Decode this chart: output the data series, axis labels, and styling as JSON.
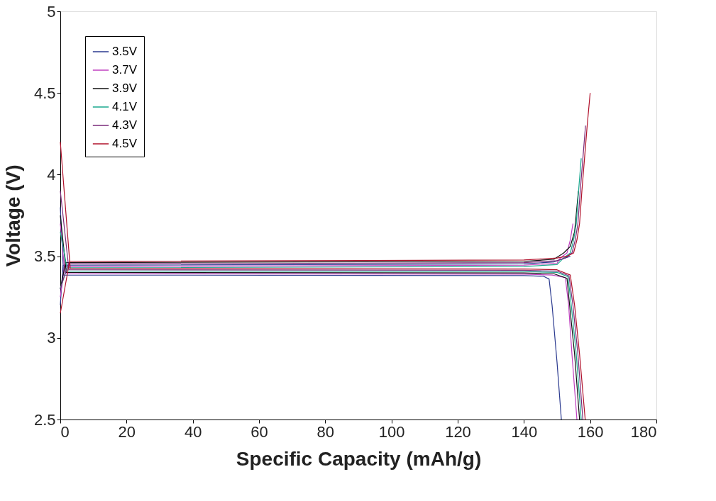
{
  "chart_data": {
    "type": "line",
    "xlabel": "Specific Capacity (mAh/g)",
    "ylabel": "Voltage (V)",
    "xlim": [
      0,
      180
    ],
    "xticks": [
      0,
      20,
      40,
      60,
      80,
      100,
      120,
      140,
      160,
      180
    ],
    "ylim": [
      2.5,
      5
    ],
    "yticks": [
      2.5,
      3,
      3.5,
      4,
      4.5,
      5
    ],
    "grid": false,
    "legend": "top left",
    "marker": "none",
    "line_style": "solid",
    "series": [
      {
        "name": "3.5V",
        "color": "#2b3a8f",
        "x": [
          0,
          0.8,
          140,
          149,
          154,
          null,
          0,
          1,
          140,
          146,
          147.6,
          148.5,
          150,
          151.3
        ],
        "values": [
          3.2,
          3.445,
          3.453,
          3.465,
          3.5,
          null,
          3.8,
          3.385,
          3.382,
          3.377,
          3.36,
          3.2,
          2.85,
          2.5
        ]
      },
      {
        "name": "3.7V",
        "color": "#c040c0",
        "x": [
          0,
          1.2,
          140,
          150,
          151,
          153,
          154,
          154.8,
          null,
          0,
          1.4,
          140,
          148.5,
          152.5,
          153.5,
          154.5,
          156
        ],
        "values": [
          3.25,
          3.437,
          3.445,
          3.457,
          3.49,
          3.52,
          3.6,
          3.7,
          null,
          3.7,
          3.393,
          3.39,
          3.385,
          3.37,
          3.2,
          2.9,
          2.5
        ]
      },
      {
        "name": "3.9V",
        "color": "#111111",
        "x": [
          0,
          1.6,
          140,
          149,
          152,
          154,
          155.3,
          156.45,
          null,
          0,
          1.8,
          140,
          149,
          153,
          153.8,
          155.3,
          156.8
        ],
        "values": [
          3.3,
          3.461,
          3.469,
          3.481,
          3.52,
          3.56,
          3.65,
          3.9,
          null,
          3.75,
          3.401,
          3.398,
          3.393,
          3.365,
          3.2,
          2.9,
          2.5
        ]
      },
      {
        "name": "4.1V",
        "color": "#1aa88e",
        "x": [
          0,
          2,
          140,
          150,
          152,
          154,
          155,
          155.8,
          156.5,
          157.3,
          null,
          0,
          2.2,
          140,
          150,
          153.3,
          154.3,
          155.8,
          157.3
        ],
        "values": [
          3.3,
          3.429,
          3.437,
          3.449,
          3.49,
          3.52,
          3.6,
          3.7,
          3.9,
          4.1,
          null,
          3.65,
          3.409,
          3.406,
          3.401,
          3.375,
          3.2,
          2.9,
          2.5
        ]
      },
      {
        "name": "4.3V",
        "color": "#7a2a7a",
        "x": [
          0,
          2.4,
          140,
          150,
          152.5,
          154.5,
          155.5,
          156.3,
          157,
          157.8,
          158.6,
          null,
          0,
          2.6,
          140,
          150,
          153.6,
          154.8,
          156.3,
          157.8
        ],
        "values": [
          3.3,
          3.453,
          3.461,
          3.473,
          3.49,
          3.52,
          3.6,
          3.7,
          3.9,
          4.1,
          4.3,
          null,
          3.9,
          3.417,
          3.414,
          3.409,
          3.38,
          3.2,
          2.9,
          2.5
        ]
      },
      {
        "name": "4.5V",
        "color": "#b0102a",
        "x": [
          0,
          2.8,
          140,
          150,
          153,
          155,
          156,
          156.8,
          157.5,
          158.3,
          159.1,
          160,
          null,
          0,
          3,
          140,
          150,
          154,
          155.3,
          156.8,
          158.5
        ],
        "values": [
          3.15,
          3.469,
          3.477,
          3.489,
          3.5,
          3.52,
          3.6,
          3.7,
          3.9,
          4.1,
          4.3,
          4.5,
          null,
          4.2,
          3.425,
          3.422,
          3.417,
          3.385,
          3.2,
          2.9,
          2.5
        ]
      }
    ]
  }
}
